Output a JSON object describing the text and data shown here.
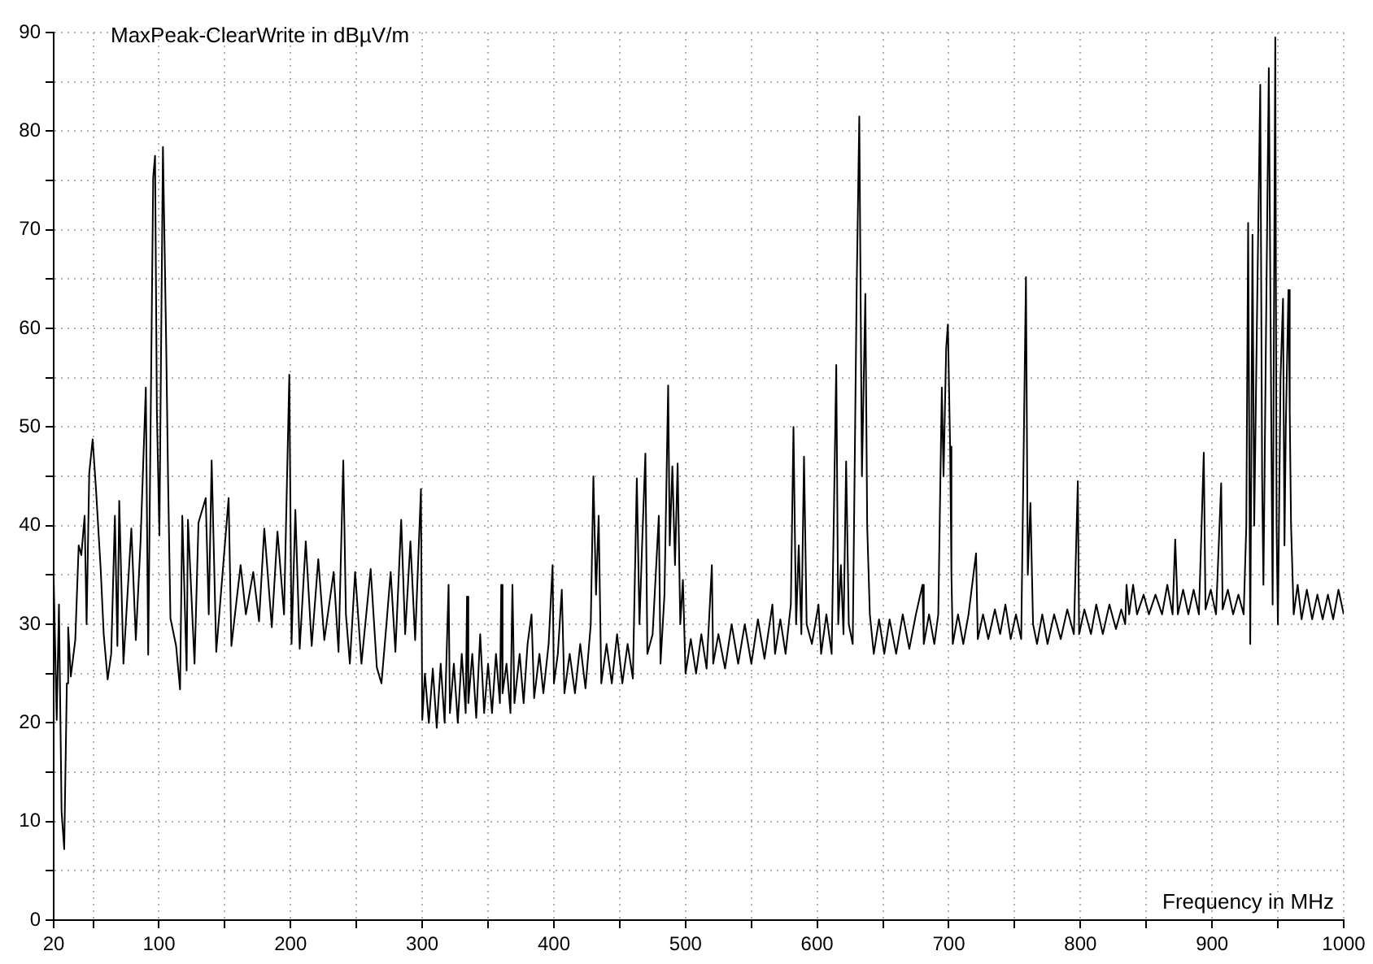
{
  "chart_data": {
    "type": "line",
    "ylabel": "MaxPeak-ClearWrite in dBµV/m",
    "xlabel": "Frequency in MHz",
    "color": "#000000",
    "grid": true,
    "xlim": [
      20,
      1000
    ],
    "xticks": [
      20,
      {
        "value": 50,
        "label": null
      },
      100,
      {
        "value": 150,
        "label": null
      },
      200,
      {
        "value": 250,
        "label": null
      },
      300,
      {
        "value": 350,
        "label": null
      },
      400,
      {
        "value": 450,
        "label": null
      },
      500,
      {
        "value": 550,
        "label": null
      },
      600,
      {
        "value": 650,
        "label": null
      },
      700,
      {
        "value": 750,
        "label": null
      },
      800,
      {
        "value": 850,
        "label": null
      },
      900,
      {
        "value": 950,
        "label": null
      },
      1000
    ],
    "ylim": [
      0,
      90
    ],
    "yticks": [
      0,
      {
        "value": 5,
        "label": null
      },
      10,
      {
        "value": 15,
        "label": null
      },
      20,
      {
        "value": 25,
        "label": null
      },
      30,
      {
        "value": 35,
        "label": null
      },
      40,
      {
        "value": 45,
        "label": null
      },
      50,
      {
        "value": 55,
        "label": null
      },
      60,
      {
        "value": 65,
        "label": null
      },
      70,
      {
        "value": 75,
        "label": null
      },
      80,
      {
        "value": 85,
        "label": null
      },
      90
    ],
    "x": [
      20,
      22.3,
      24,
      26,
      28,
      30,
      31,
      33,
      36.4,
      39,
      41,
      43.5,
      45,
      47,
      49.6,
      52,
      55.7,
      58,
      61,
      63.7,
      66.5,
      68.4,
      69.8,
      73,
      79,
      82.4,
      86,
      90,
      91.8,
      95.6,
      97,
      98.4,
      100.3,
      103,
      104,
      105.4,
      106.9,
      108.7,
      113,
      116,
      117.7,
      121,
      122,
      127,
      130,
      135.5,
      137.8,
      140,
      143.5,
      152.9,
      155,
      162,
      166,
      171.6,
      176,
      180,
      185.7,
      190,
      195,
      199,
      200.7,
      203.6,
      206.9,
      211.5,
      216,
      221,
      225.6,
      232.7,
      236.4,
      240,
      242,
      245,
      249,
      253.8,
      260.8,
      265.5,
      269,
      272.6,
      276,
      279.6,
      284,
      287,
      291,
      294.6,
      299,
      300,
      302,
      305,
      308,
      311,
      314,
      317,
      320,
      321,
      324,
      327,
      330,
      333,
      334,
      335,
      338,
      341,
      344,
      347,
      350,
      353,
      356,
      359,
      360,
      361,
      364,
      367,
      368.5,
      370,
      374,
      377,
      380,
      383,
      385,
      389,
      392,
      396,
      399,
      400,
      403,
      406,
      408,
      412,
      416,
      420,
      424,
      428,
      430,
      432,
      434,
      436,
      440,
      444,
      448,
      452,
      456,
      460,
      463,
      465,
      467,
      469.5,
      471,
      475,
      479.7,
      481,
      484,
      486.8,
      488,
      490,
      492,
      494,
      496,
      498,
      500,
      504,
      508,
      512,
      516,
      520,
      521,
      525,
      530,
      535,
      540,
      545,
      550,
      555,
      560,
      566,
      568,
      572,
      576,
      580,
      582,
      584,
      586,
      588,
      590,
      592,
      596,
      601,
      603,
      607,
      611,
      614.5,
      616,
      618,
      620,
      622,
      624,
      627,
      630,
      632,
      634,
      636.6,
      638,
      640,
      643,
      647,
      651,
      655,
      660,
      665,
      670,
      675,
      680,
      681,
      685,
      689,
      692,
      694.7,
      696,
      698,
      699.3,
      701,
      702,
      703,
      707,
      711,
      715,
      720.7,
      722,
      726,
      730,
      735,
      739,
      743,
      747,
      751,
      755,
      758.6,
      760,
      762,
      764,
      767,
      771,
      775,
      780,
      785,
      790,
      795,
      798,
      799,
      803,
      808,
      812,
      817,
      822,
      827,
      831,
      834,
      835,
      837,
      840,
      843,
      848,
      852,
      857,
      862,
      866,
      870,
      872,
      874,
      878,
      882,
      886,
      890,
      893.7,
      895,
      899,
      903,
      906.9,
      908,
      912,
      916,
      920,
      924,
      926,
      927.4,
      929,
      930.7,
      932,
      934,
      936.6,
      938,
      939,
      941,
      943.1,
      945,
      946,
      948,
      949,
      950,
      952,
      953.9,
      955,
      956,
      958,
      959,
      960,
      962,
      965,
      968,
      972,
      976,
      980,
      984,
      988,
      992,
      996,
      1000
    ],
    "values": [
      34.7,
      20.3,
      32,
      11,
      7.2,
      24,
      29.7,
      24.7,
      28.4,
      38,
      37,
      41,
      30,
      45.3,
      48.75,
      44,
      35.6,
      29,
      24.4,
      27,
      41,
      27.8,
      42.5,
      26,
      39.7,
      28.4,
      38.4,
      54,
      26.9,
      75.3,
      77.5,
      51.6,
      39,
      78.4,
      78.4,
      59,
      44.7,
      30.6,
      27.8,
      23.4,
      41,
      25.3,
      40.6,
      26,
      40.3,
      42.8,
      31,
      46.6,
      27.2,
      42.8,
      27.8,
      36,
      31,
      35.3,
      30.3,
      39.7,
      29.7,
      39.4,
      31,
      55.3,
      28,
      41.6,
      27.5,
      38.4,
      27.8,
      36.6,
      28.4,
      35.3,
      27.2,
      46.6,
      31,
      26,
      35.3,
      26,
      35.6,
      25.6,
      24,
      29.7,
      35.3,
      27.2,
      40.6,
      29,
      38.4,
      28.4,
      43.7,
      20.3,
      25,
      20,
      25.5,
      19.5,
      26,
      20,
      34,
      21,
      26,
      20,
      27,
      21,
      32.8,
      22,
      27,
      20.5,
      29,
      21,
      26,
      21,
      27,
      22,
      34,
      23,
      26,
      21,
      34,
      22,
      27,
      22,
      28,
      31,
      22.5,
      27,
      23,
      28,
      36,
      24,
      27,
      33.5,
      23,
      27,
      23,
      28,
      23.5,
      30,
      45,
      33,
      41,
      24,
      28,
      24,
      29,
      24,
      28,
      24.5,
      44.8,
      30,
      38,
      47.3,
      27,
      29,
      41,
      26,
      33,
      54.2,
      38,
      46,
      36,
      46.3,
      30,
      34.5,
      25,
      28.5,
      25,
      29,
      25.5,
      36,
      26,
      29,
      25.5,
      30,
      26,
      30,
      26,
      30.5,
      26.5,
      32,
      27,
      30.5,
      27,
      32,
      50,
      30,
      38,
      29,
      47,
      30,
      28,
      32,
      27,
      31,
      27,
      56.3,
      30,
      36,
      29,
      46.5,
      30,
      28,
      64,
      81.5,
      45,
      63.5,
      40,
      31,
      27,
      30.5,
      27,
      30.5,
      27,
      31,
      27.5,
      31,
      34,
      28,
      31,
      28,
      31,
      54,
      45,
      58,
      60.4,
      48,
      35,
      28,
      31,
      28,
      31,
      37.2,
      28.5,
      31,
      28.5,
      31.5,
      29,
      32,
      28.5,
      31,
      28.5,
      65.2,
      35,
      42.3,
      30,
      28,
      31,
      28,
      31,
      28.5,
      31.5,
      29,
      44.5,
      29,
      31.5,
      29,
      32,
      29,
      32,
      29.5,
      31.5,
      30,
      34,
      31,
      34,
      31,
      33,
      31,
      33,
      31,
      34,
      31,
      38.6,
      31,
      33.5,
      31,
      33.5,
      31,
      47.4,
      31.5,
      33.5,
      31,
      44.3,
      31.5,
      33.5,
      31,
      33,
      31,
      40,
      70.7,
      28,
      69.5,
      40,
      60,
      84.7,
      45,
      34,
      60,
      86.4,
      50,
      32,
      89.5,
      40,
      30,
      55,
      63,
      38,
      50,
      63.9,
      51.5,
      40,
      31,
      34,
      30.5,
      33.5,
      30.5,
      33,
      30.5,
      33,
      30.5,
      33.5,
      31
    ]
  }
}
